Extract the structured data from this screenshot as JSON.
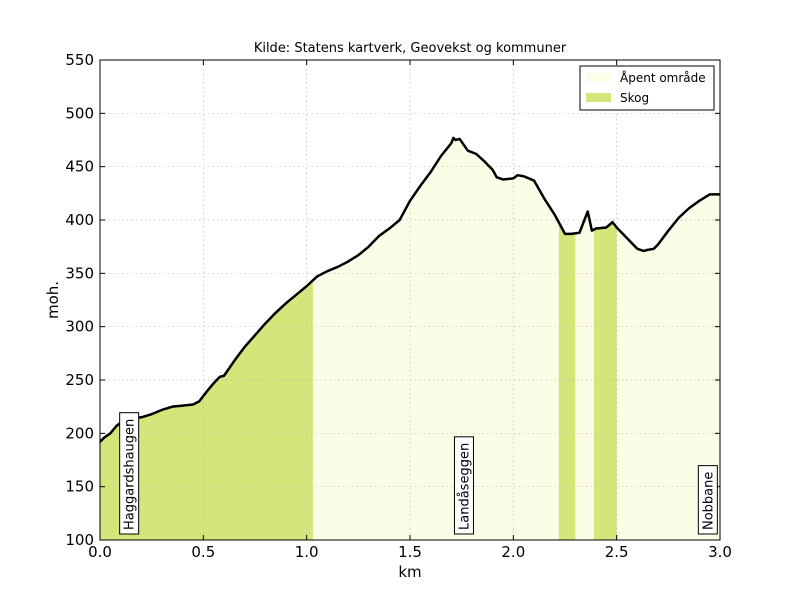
{
  "chart_data": {
    "type": "area",
    "title": "Kilde: Statens kartverk, Geovekst og kommuner",
    "xlabel": "km",
    "ylabel": "moh.",
    "xlim": [
      0,
      3.0
    ],
    "ylim": [
      100,
      550
    ],
    "xticks": [
      0.0,
      0.5,
      1.0,
      1.5,
      2.0,
      2.5,
      3.0
    ],
    "xtick_labels": [
      "0.0",
      "0.5",
      "1.0",
      "1.5",
      "2.0",
      "2.5",
      "3.0"
    ],
    "yticks": [
      100,
      150,
      200,
      250,
      300,
      350,
      400,
      450,
      500,
      550
    ],
    "ytick_labels": [
      "100",
      "150",
      "200",
      "250",
      "300",
      "350",
      "400",
      "450",
      "500",
      "550"
    ],
    "grid": true,
    "legend_position": "top-right",
    "legend": [
      {
        "label": "Åpent område",
        "color": "#fcfde6"
      },
      {
        "label": "Skog",
        "color": "#d4e57a"
      }
    ],
    "profile": {
      "x": [
        0.0,
        0.02,
        0.05,
        0.08,
        0.1,
        0.13,
        0.15,
        0.2,
        0.25,
        0.3,
        0.35,
        0.4,
        0.45,
        0.48,
        0.5,
        0.52,
        0.55,
        0.58,
        0.6,
        0.65,
        0.7,
        0.75,
        0.8,
        0.85,
        0.9,
        0.95,
        1.0,
        1.05,
        1.1,
        1.15,
        1.17,
        1.2,
        1.25,
        1.3,
        1.35,
        1.4,
        1.45,
        1.5,
        1.55,
        1.6,
        1.65,
        1.7,
        1.71,
        1.72,
        1.74,
        1.78,
        1.82,
        1.86,
        1.9,
        1.92,
        1.95,
        2.0,
        2.02,
        2.05,
        2.1,
        2.15,
        2.2,
        2.25,
        2.28,
        2.32,
        2.36,
        2.38,
        2.4,
        2.45,
        2.48,
        2.5,
        2.55,
        2.6,
        2.63,
        2.65,
        2.68,
        2.7,
        2.75,
        2.8,
        2.85,
        2.9,
        2.95,
        3.0
      ],
      "y": [
        192,
        196,
        200,
        207,
        210,
        214,
        215,
        215,
        218,
        222,
        225,
        226,
        227,
        230,
        235,
        240,
        247,
        253,
        254,
        268,
        281,
        292,
        303,
        313,
        322,
        330,
        338,
        347,
        352,
        356,
        358,
        361,
        367,
        375,
        385,
        392,
        400,
        418,
        432,
        445,
        460,
        472,
        477,
        475,
        476,
        465,
        462,
        455,
        447,
        440,
        438,
        439,
        442,
        441,
        437,
        420,
        405,
        387,
        387,
        388,
        408,
        390,
        392,
        393,
        398,
        393,
        383,
        373,
        371,
        372,
        373,
        377,
        390,
        402,
        411,
        418,
        424,
        424
      ]
    },
    "skog_segments": [
      [
        0.0,
        1.03
      ],
      [
        2.22,
        2.3
      ],
      [
        2.39,
        2.5
      ]
    ],
    "annotations": [
      {
        "text": "Haggardshaugen",
        "x": 0.1
      },
      {
        "text": "Landåseggen",
        "x": 1.72
      },
      {
        "text": "Nobbane",
        "x": 2.9
      }
    ]
  }
}
